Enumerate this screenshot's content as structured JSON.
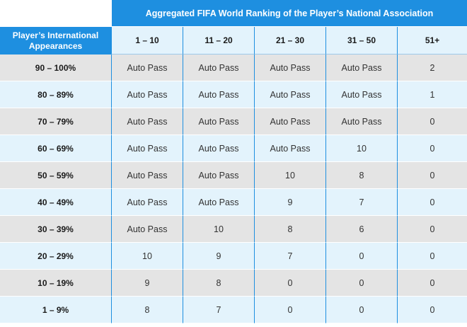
{
  "table": {
    "super_header": "Aggregated FIFA World Ranking of the Player’s National Association",
    "row_header": "Player’s International Appearances",
    "columns": [
      "1 – 10",
      "11 – 20",
      "21 – 30",
      "31 – 50",
      "51+"
    ],
    "rows": [
      {
        "label": "90 – 100%",
        "cells": [
          "Auto Pass",
          "Auto Pass",
          "Auto Pass",
          "Auto Pass",
          "2"
        ]
      },
      {
        "label": "80 – 89%",
        "cells": [
          "Auto Pass",
          "Auto Pass",
          "Auto Pass",
          "Auto Pass",
          "1"
        ]
      },
      {
        "label": "70 – 79%",
        "cells": [
          "Auto Pass",
          "Auto Pass",
          "Auto Pass",
          "Auto Pass",
          "0"
        ]
      },
      {
        "label": "60 – 69%",
        "cells": [
          "Auto Pass",
          "Auto Pass",
          "Auto Pass",
          "10",
          "0"
        ]
      },
      {
        "label": "50 – 59%",
        "cells": [
          "Auto Pass",
          "Auto Pass",
          "10",
          "8",
          "0"
        ]
      },
      {
        "label": "40 – 49%",
        "cells": [
          "Auto Pass",
          "Auto Pass",
          "9",
          "7",
          "0"
        ]
      },
      {
        "label": "30 – 39%",
        "cells": [
          "Auto Pass",
          "10",
          "8",
          "6",
          "0"
        ]
      },
      {
        "label": "20 – 29%",
        "cells": [
          "10",
          "9",
          "7",
          "0",
          "0"
        ]
      },
      {
        "label": "10 – 19%",
        "cells": [
          "9",
          "8",
          "0",
          "0",
          "0"
        ]
      },
      {
        "label": "1 – 9%",
        "cells": [
          "8",
          "7",
          "0",
          "0",
          "0"
        ]
      }
    ]
  },
  "colors": {
    "header_blue": "#1e8fe0",
    "row_light_blue": "#e3f3fc",
    "row_grey": "#e4e4e4"
  }
}
